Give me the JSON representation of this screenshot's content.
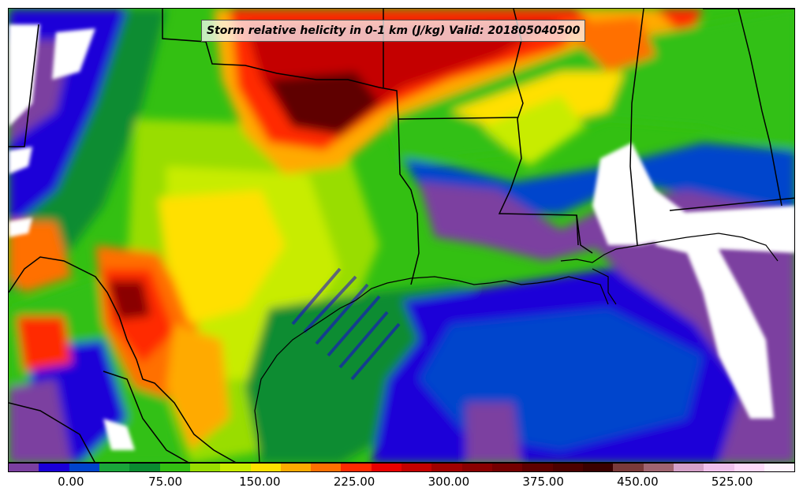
{
  "title": "Storm relative helicity in 0-1 km (J/kg) Valid: 201805040500",
  "colorbar": {
    "colors": [
      "#7b3fa0",
      "#1a00d8",
      "#0044cc",
      "#1aa63a",
      "#0a8c30",
      "#33c012",
      "#99dd00",
      "#c8ec00",
      "#ffe000",
      "#ffaa00",
      "#ff7000",
      "#ff2a00",
      "#e80000",
      "#c40000",
      "#a00000",
      "#8a0000",
      "#740000",
      "#5e0000",
      "#4c0000",
      "#3a0000",
      "#7a3a3a",
      "#a06470",
      "#d4a0c8",
      "#f0c0ec",
      "#ffd8fa",
      "#fff0fe"
    ],
    "tick_values": [
      "0.00",
      "75.00",
      "150.00",
      "225.00",
      "300.00",
      "375.00",
      "450.00",
      "525.00"
    ]
  },
  "legend": {
    "min": -50,
    "max": 575,
    "ticks": [
      0,
      75,
      150,
      225,
      300,
      375,
      450,
      525
    ]
  }
}
